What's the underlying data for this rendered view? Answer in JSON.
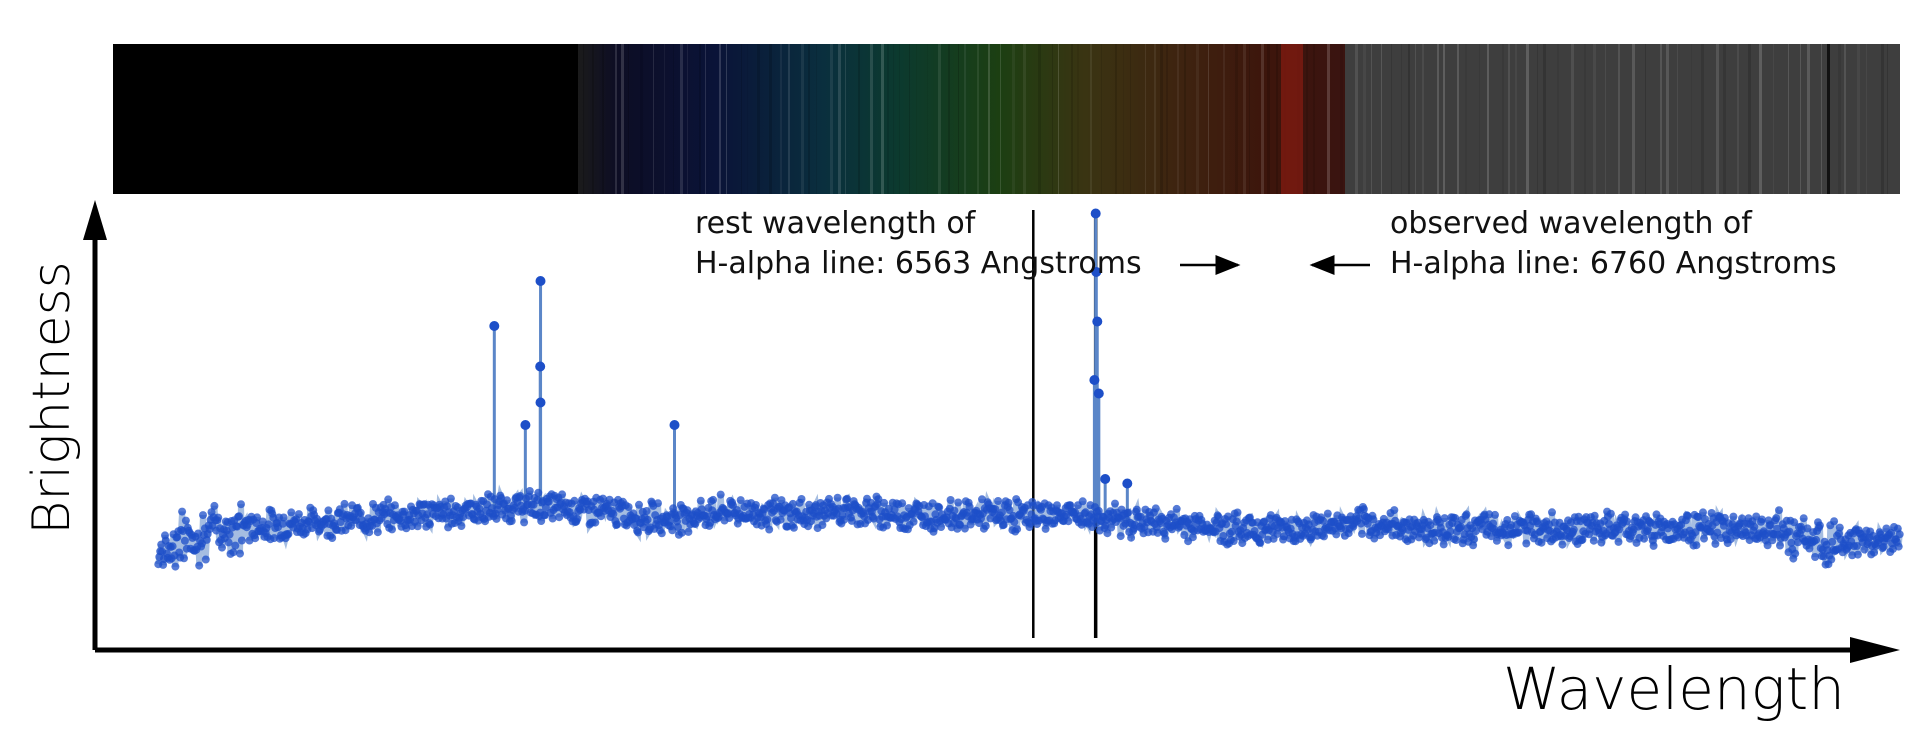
{
  "chart_data": {
    "type": "scatter",
    "title": "",
    "xlabel": "Wavelength",
    "ylabel": "Brightness",
    "x_unit": "Angstroms",
    "xlim": [
      3600,
      9300
    ],
    "ylim": [
      0,
      100
    ],
    "tick_labels": false,
    "grid": false,
    "legend": "none",
    "marker_color": "#1d4fc8",
    "line_color": "#5b86c8",
    "spectrum_strip": true,
    "reference_lines": [
      {
        "name": "rest",
        "x": 6563,
        "label_lines": [
          "rest wavelength of",
          "H-alpha line: 6563 Angstroms"
        ]
      },
      {
        "name": "observed",
        "x": 6760,
        "label_lines": [
          "observed wavelength of",
          "H-alpha line: 6760 Angstroms"
        ]
      }
    ],
    "baseline": {
      "x": [
        3800,
        3900,
        4000,
        4200,
        4400,
        4600,
        4800,
        5000,
        5200,
        5400,
        5600,
        5800,
        6000,
        6200,
        6400,
        6600,
        6700,
        6800,
        7000,
        7200,
        7400,
        7600,
        7800,
        8000,
        8200,
        8400,
        8600,
        8800,
        9000,
        9200,
        9300
      ],
      "y": [
        22,
        25,
        27,
        28,
        29,
        30,
        31,
        32,
        31,
        29,
        31,
        30,
        31,
        30,
        30,
        30,
        30,
        29,
        28,
        27,
        27,
        28,
        27,
        27,
        27,
        27,
        27,
        27,
        25,
        24,
        25
      ]
    },
    "emission_peaks": [
      {
        "x": 4861,
        "y": 72
      },
      {
        "x": 4959,
        "y": 50
      },
      {
        "x": 5007,
        "y": 82
      },
      {
        "x": 5006,
        "y": 63
      },
      {
        "x": 5007,
        "y": 55
      },
      {
        "x": 5430,
        "y": 50
      },
      {
        "x": 6760,
        "y": 97
      },
      {
        "x": 6762,
        "y": 84
      },
      {
        "x": 6765,
        "y": 73
      },
      {
        "x": 6756,
        "y": 60
      },
      {
        "x": 6770,
        "y": 57
      },
      {
        "x": 6790,
        "y": 38
      },
      {
        "x": 6860,
        "y": 37
      }
    ]
  },
  "labels": {
    "xlabel": "Wavelength",
    "ylabel": "Brightness",
    "rest_line1": "rest wavelength of",
    "rest_line2": "H-alpha line: 6563 Angstroms",
    "observed_line1": "observed wavelength of",
    "observed_line2": "H-alpha line: 6760 Angstroms"
  },
  "colors": {
    "strip_black": "#000000",
    "strip_gray": "#3e3e3e",
    "axis": "#000000",
    "markers": "#1d4fc8"
  }
}
